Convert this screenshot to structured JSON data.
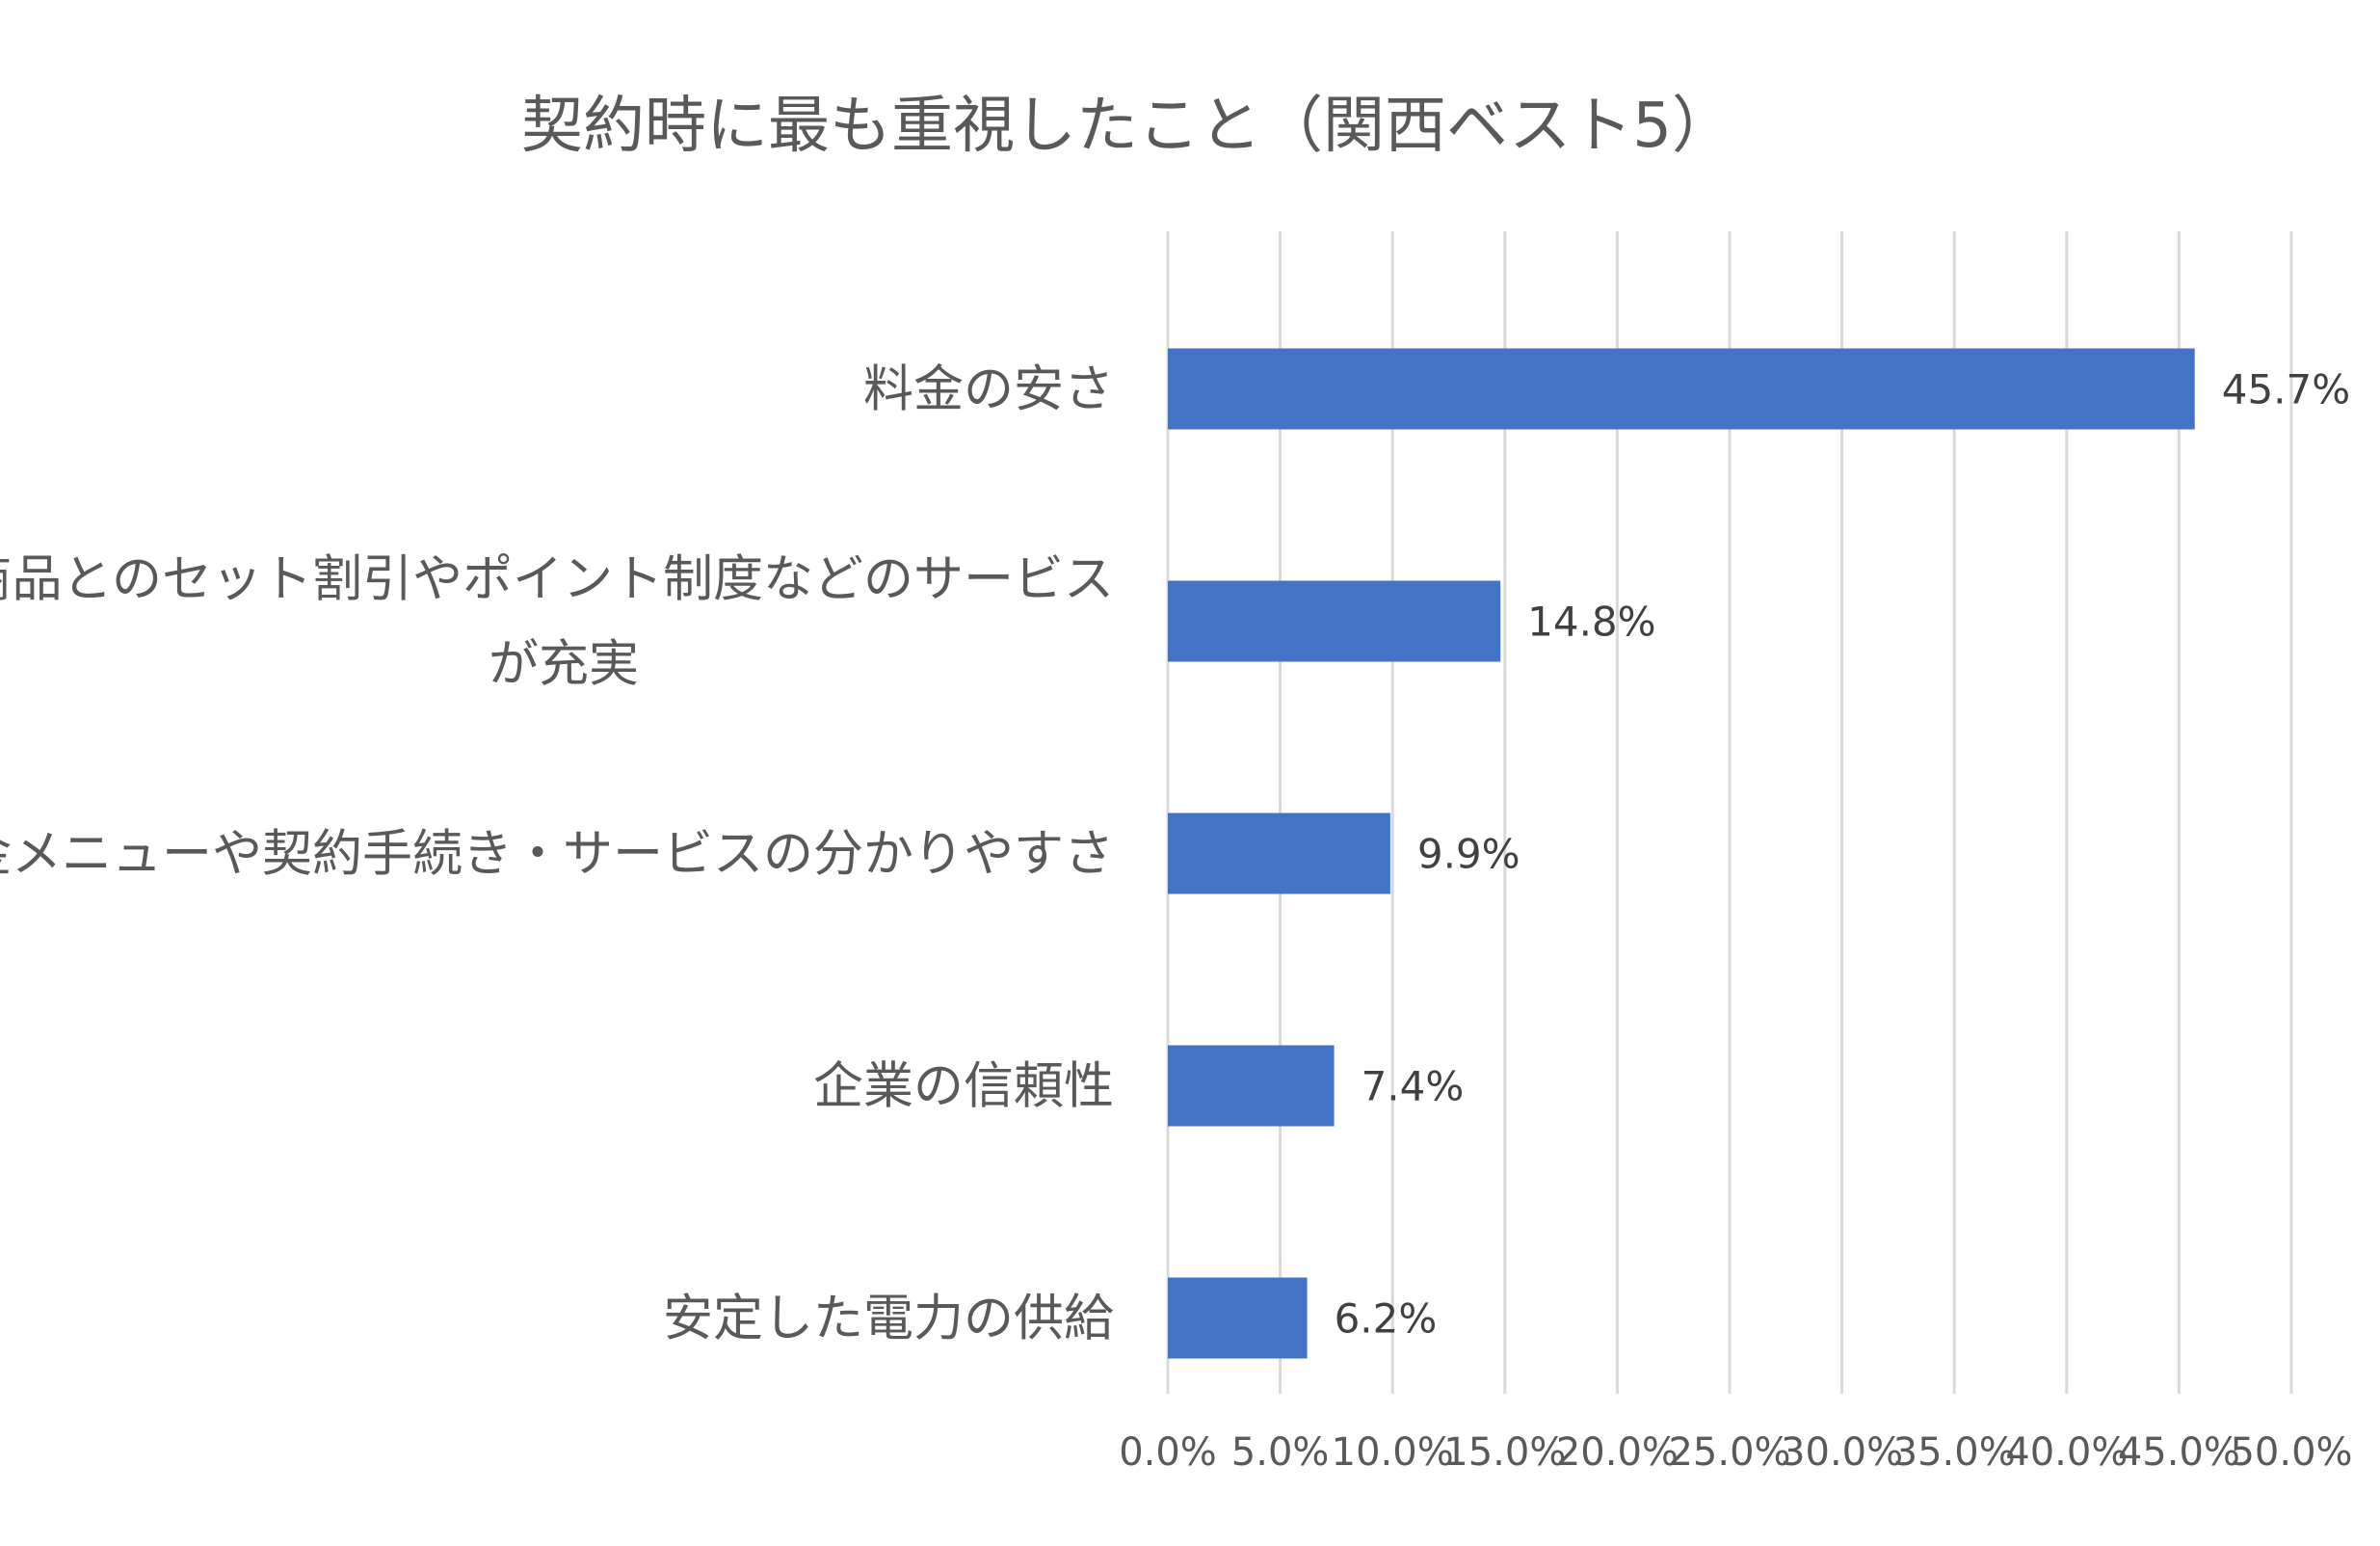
{
  "chart_data": {
    "type": "bar",
    "orientation": "horizontal",
    "title": "契約時に最も重視したこと（関西ベスト5）",
    "categories": [
      "料金の安さ",
      "他の商品とのセット割引やポイント制度などのサービスが充実",
      "料金メニューや契約手続き・サービスの分かりやすさ",
      "企業の信頼性",
      "安定した電力の供給"
    ],
    "category_lines": [
      [
        "料金の安さ"
      ],
      [
        "他の商品とのセット割引やポイント制度などのサービス",
        "が充実"
      ],
      [
        "料金メニューや契約手続き・サービスの分かりやすさ"
      ],
      [
        "企業の信頼性"
      ],
      [
        "安定した電力の供給"
      ]
    ],
    "values": [
      45.7,
      14.8,
      9.9,
      7.4,
      6.2
    ],
    "data_labels": [
      "45.7%",
      "14.8%",
      "9.9%",
      "7.4%",
      "6.2%"
    ],
    "xlim": [
      0,
      50
    ],
    "xticks": [
      0,
      5,
      10,
      15,
      20,
      25,
      30,
      35,
      40,
      45,
      50
    ],
    "xtick_labels": [
      "0.0%",
      "5.0%",
      "10.0%",
      "15.0%",
      "20.0%",
      "25.0%",
      "30.0%",
      "35.0%",
      "40.0%",
      "45.0%",
      "50.0%"
    ],
    "xlabel": "",
    "ylabel": "",
    "grid": true,
    "legend": "none",
    "bar_color": "#4472c4"
  }
}
